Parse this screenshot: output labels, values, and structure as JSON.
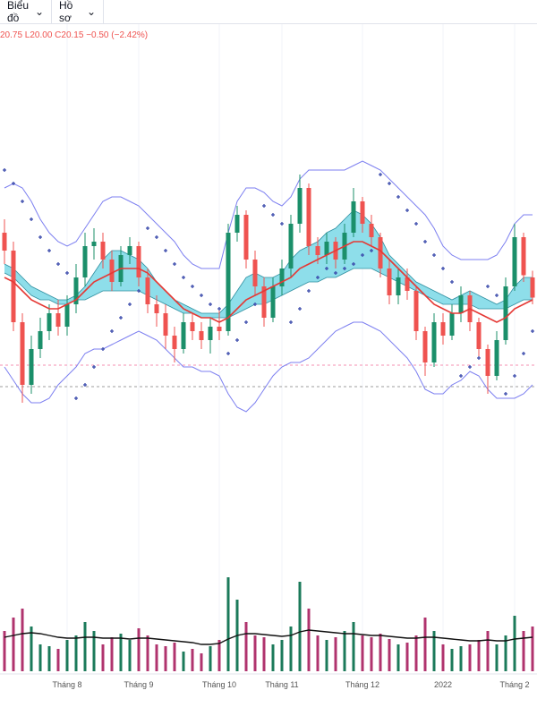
{
  "toolbar": [
    "Biểu đồ",
    "Hồ sơ"
  ],
  "chart_data": {
    "type": "candlestick",
    "header": "20.75 L20.00 C20.15 −0.50 (−2.42%)",
    "categories": [
      null,
      null,
      null,
      null,
      null,
      null,
      null,
      "Tháng 8",
      null,
      null,
      null,
      null,
      null,
      null,
      null,
      "Tháng 9",
      null,
      null,
      null,
      null,
      null,
      null,
      null,
      null,
      "Tháng 10",
      null,
      null,
      null,
      null,
      null,
      null,
      "Tháng 11",
      null,
      null,
      null,
      null,
      null,
      null,
      null,
      null,
      "Tháng 12",
      null,
      null,
      null,
      null,
      null,
      null,
      null,
      null,
      "2022",
      null,
      null,
      null,
      null,
      null,
      null,
      null,
      "Tháng 2",
      null,
      null
    ],
    "open": [
      21.6,
      21.2,
      19.6,
      18.2,
      19.0,
      19.4,
      19.8,
      19.5,
      20.0,
      20.6,
      21.3,
      21.4,
      21.0,
      20.5,
      21.1,
      21.3,
      20.6,
      20.0,
      19.8,
      19.3,
      19.0,
      19.6,
      19.4,
      19.2,
      19.5,
      19.4,
      21.6,
      22.0,
      21.0,
      20.4,
      19.7,
      20.4,
      20.8,
      21.8,
      22.6,
      21.3,
      21.1,
      21.4,
      21.0,
      21.6,
      22.3,
      21.8,
      21.5,
      20.8,
      20.2,
      20.6,
      20.3,
      19.4,
      18.7,
      19.6,
      19.3,
      19.8,
      20.2,
      19.6,
      19.0,
      18.4,
      19.2,
      20.4,
      21.5,
      20.6
    ],
    "high": [
      21.9,
      21.4,
      19.8,
      19.3,
      19.7,
      20.0,
      20.1,
      20.2,
      20.9,
      21.6,
      21.7,
      21.6,
      21.2,
      21.3,
      21.5,
      21.4,
      20.8,
      20.2,
      20.0,
      19.5,
      19.8,
      19.8,
      19.6,
      19.7,
      19.9,
      21.8,
      22.2,
      22.1,
      21.2,
      20.6,
      20.6,
      21.0,
      22.0,
      22.9,
      22.7,
      21.5,
      21.6,
      21.5,
      21.8,
      22.6,
      22.4,
      22.0,
      21.6,
      21.0,
      20.8,
      20.8,
      20.4,
      19.5,
      19.8,
      19.8,
      20.0,
      20.4,
      20.3,
      19.7,
      19.1,
      19.4,
      20.6,
      21.8,
      21.6,
      20.75
    ],
    "low": [
      20.9,
      19.4,
      17.8,
      18.0,
      18.8,
      19.2,
      19.3,
      19.3,
      19.8,
      20.4,
      21.0,
      20.8,
      20.3,
      20.4,
      20.9,
      20.4,
      19.8,
      19.5,
      19.0,
      18.7,
      18.9,
      19.2,
      19.0,
      18.9,
      19.2,
      19.3,
      21.4,
      20.8,
      20.2,
      19.5,
      19.6,
      20.2,
      20.6,
      21.6,
      21.1,
      20.9,
      20.9,
      20.8,
      20.9,
      21.5,
      21.6,
      21.3,
      20.6,
      20.0,
      20.0,
      20.1,
      19.2,
      18.4,
      18.6,
      19.1,
      19.2,
      19.6,
      19.4,
      18.8,
      18.0,
      18.3,
      19.1,
      20.3,
      20.5,
      20.0
    ],
    "close": [
      21.2,
      19.6,
      18.2,
      19.0,
      19.4,
      19.8,
      19.5,
      20.0,
      20.6,
      21.3,
      21.4,
      21.0,
      20.5,
      21.1,
      21.3,
      20.6,
      20.0,
      19.8,
      19.3,
      19.0,
      19.6,
      19.4,
      19.2,
      19.5,
      19.4,
      21.6,
      22.0,
      21.0,
      20.4,
      19.7,
      20.4,
      20.8,
      21.8,
      22.6,
      21.3,
      21.1,
      21.4,
      21.0,
      21.6,
      22.3,
      21.8,
      21.5,
      20.8,
      20.2,
      20.6,
      20.3,
      19.4,
      18.7,
      19.6,
      19.3,
      19.8,
      20.2,
      19.6,
      19.0,
      18.4,
      19.2,
      20.4,
      21.5,
      20.65,
      20.15
    ],
    "bb_upper": [
      22.6,
      22.7,
      22.6,
      22.3,
      21.9,
      21.6,
      21.4,
      21.3,
      21.4,
      21.7,
      22.0,
      22.3,
      22.4,
      22.4,
      22.3,
      22.2,
      22.0,
      21.8,
      21.6,
      21.4,
      21.1,
      20.9,
      20.8,
      20.8,
      20.8,
      21.6,
      22.3,
      22.6,
      22.6,
      22.5,
      22.3,
      22.2,
      22.4,
      22.8,
      23.0,
      23.0,
      23.0,
      23.0,
      23.0,
      23.1,
      23.2,
      23.1,
      23.0,
      22.8,
      22.6,
      22.4,
      22.2,
      22.0,
      21.7,
      21.3,
      21.1,
      21.0,
      21.0,
      21.0,
      21.0,
      21.1,
      21.4,
      21.8,
      22.0,
      22.0
    ],
    "bb_lower": [
      18.6,
      18.3,
      18.0,
      17.8,
      17.8,
      17.9,
      18.2,
      18.4,
      18.6,
      18.9,
      19.0,
      19.0,
      19.1,
      19.2,
      19.3,
      19.4,
      19.3,
      19.2,
      19.0,
      18.8,
      18.6,
      18.6,
      18.5,
      18.5,
      18.4,
      18.0,
      17.7,
      17.6,
      17.8,
      18.1,
      18.4,
      18.6,
      18.7,
      18.7,
      18.8,
      19.0,
      19.2,
      19.4,
      19.5,
      19.6,
      19.6,
      19.5,
      19.4,
      19.2,
      19.0,
      18.8,
      18.5,
      18.1,
      18.0,
      18.0,
      18.2,
      18.3,
      18.5,
      18.4,
      18.1,
      17.9,
      17.9,
      17.9,
      18.0,
      18.2
    ],
    "ma": [
      20.6,
      20.5,
      20.3,
      20.1,
      20.0,
      19.9,
      19.9,
      20.0,
      20.1,
      20.3,
      20.5,
      20.6,
      20.7,
      20.8,
      20.8,
      20.8,
      20.7,
      20.5,
      20.3,
      20.1,
      19.9,
      19.8,
      19.7,
      19.7,
      19.6,
      19.7,
      19.9,
      20.1,
      20.2,
      20.3,
      20.4,
      20.5,
      20.6,
      20.8,
      20.9,
      21.0,
      21.1,
      21.2,
      21.3,
      21.4,
      21.4,
      21.3,
      21.2,
      21.0,
      20.8,
      20.6,
      20.4,
      20.2,
      20.0,
      19.9,
      19.8,
      19.8,
      19.9,
      19.8,
      19.7,
      19.6,
      19.7,
      19.9,
      20.0,
      20.1
    ],
    "cloud_a": [
      20.9,
      20.8,
      20.6,
      20.4,
      20.3,
      20.2,
      20.1,
      20.1,
      20.2,
      20.4,
      20.7,
      21.0,
      21.2,
      21.2,
      21.1,
      21.0,
      20.8,
      20.5,
      20.3,
      20.1,
      20.0,
      19.9,
      19.8,
      19.8,
      19.8,
      20.0,
      20.3,
      20.6,
      20.7,
      20.6,
      20.6,
      20.7,
      21.0,
      21.2,
      21.3,
      21.4,
      21.6,
      21.7,
      21.9,
      22.1,
      22.0,
      21.8,
      21.5,
      21.1,
      20.9,
      20.7,
      20.5,
      20.4,
      20.3,
      20.2,
      20.1,
      20.2,
      20.3,
      20.2,
      20.1,
      20.0,
      20.1,
      20.4,
      20.6,
      20.6
    ],
    "cloud_b": [
      20.7,
      20.6,
      20.4,
      20.2,
      20.1,
      20.1,
      20.0,
      20.0,
      20.1,
      20.1,
      20.2,
      20.3,
      20.3,
      20.3,
      20.3,
      20.3,
      20.2,
      20.1,
      20.0,
      19.9,
      19.8,
      19.8,
      19.7,
      19.7,
      19.7,
      19.7,
      19.8,
      19.9,
      20.0,
      20.0,
      20.1,
      20.2,
      20.3,
      20.4,
      20.5,
      20.5,
      20.6,
      20.6,
      20.7,
      20.8,
      20.8,
      20.8,
      20.7,
      20.6,
      20.5,
      20.4,
      20.3,
      20.2,
      20.1,
      20.0,
      20.0,
      20.0,
      20.0,
      19.9,
      19.9,
      19.9,
      19.9,
      20.0,
      20.1,
      20.1
    ],
    "sar": [
      23.0,
      22.7,
      22.3,
      21.9,
      21.5,
      21.2,
      20.9,
      20.7,
      17.9,
      18.2,
      18.6,
      19.0,
      19.4,
      19.7,
      20.0,
      20.3,
      21.7,
      21.5,
      21.2,
      20.9,
      20.6,
      20.4,
      20.2,
      20.0,
      19.9,
      18.9,
      19.2,
      19.6,
      20.0,
      22.2,
      22.0,
      21.8,
      19.6,
      19.9,
      20.3,
      20.6,
      20.8,
      20.7,
      20.8,
      20.9,
      21.1,
      21.2,
      22.9,
      22.7,
      22.4,
      22.1,
      21.8,
      21.4,
      21.1,
      20.8,
      20.5,
      18.4,
      18.6,
      18.8,
      20.4,
      20.2,
      18.0,
      18.4,
      18.9,
      19.4
    ],
    "ylim": [
      14.4,
      26
    ],
    "price_lines": [
      {
        "value": 18.64,
        "color": "#f48fb1"
      },
      {
        "value": 18.16,
        "color": "#9e9e9e"
      }
    ],
    "grid": true,
    "colors": {
      "up": "#1b8f6a",
      "down": "#ef5350",
      "bb": "#7c7ff0",
      "ma": "#e53935",
      "cloud_fill": "#7ad8e6",
      "cloud_line": "#2f8fa0",
      "sar": "#3949ab"
    },
    "volume": {
      "values": [
        45,
        60,
        70,
        50,
        30,
        28,
        25,
        35,
        40,
        55,
        45,
        30,
        38,
        42,
        35,
        48,
        40,
        30,
        28,
        32,
        22,
        25,
        20,
        28,
        35,
        105,
        80,
        55,
        40,
        38,
        30,
        35,
        50,
        100,
        70,
        40,
        35,
        38,
        45,
        55,
        40,
        38,
        42,
        36,
        30,
        32,
        40,
        60,
        45,
        30,
        25,
        28,
        30,
        35,
        45,
        30,
        40,
        62,
        45,
        50
      ],
      "ma": [
        38,
        40,
        42,
        43,
        42,
        40,
        38,
        37,
        37,
        38,
        38,
        37,
        37,
        37,
        36,
        37,
        37,
        36,
        35,
        34,
        33,
        32,
        30,
        30,
        31,
        36,
        40,
        42,
        42,
        41,
        40,
        39,
        40,
        44,
        46,
        45,
        44,
        43,
        42,
        42,
        41,
        40,
        40,
        39,
        38,
        37,
        37,
        38,
        38,
        37,
        36,
        35,
        34,
        34,
        35,
        34,
        34,
        36,
        37,
        38
      ],
      "ylim": [
        0,
        120
      ],
      "colors": {
        "up": "#1b7a5a",
        "down": "#b0336e",
        "ma": "#111111"
      }
    }
  }
}
